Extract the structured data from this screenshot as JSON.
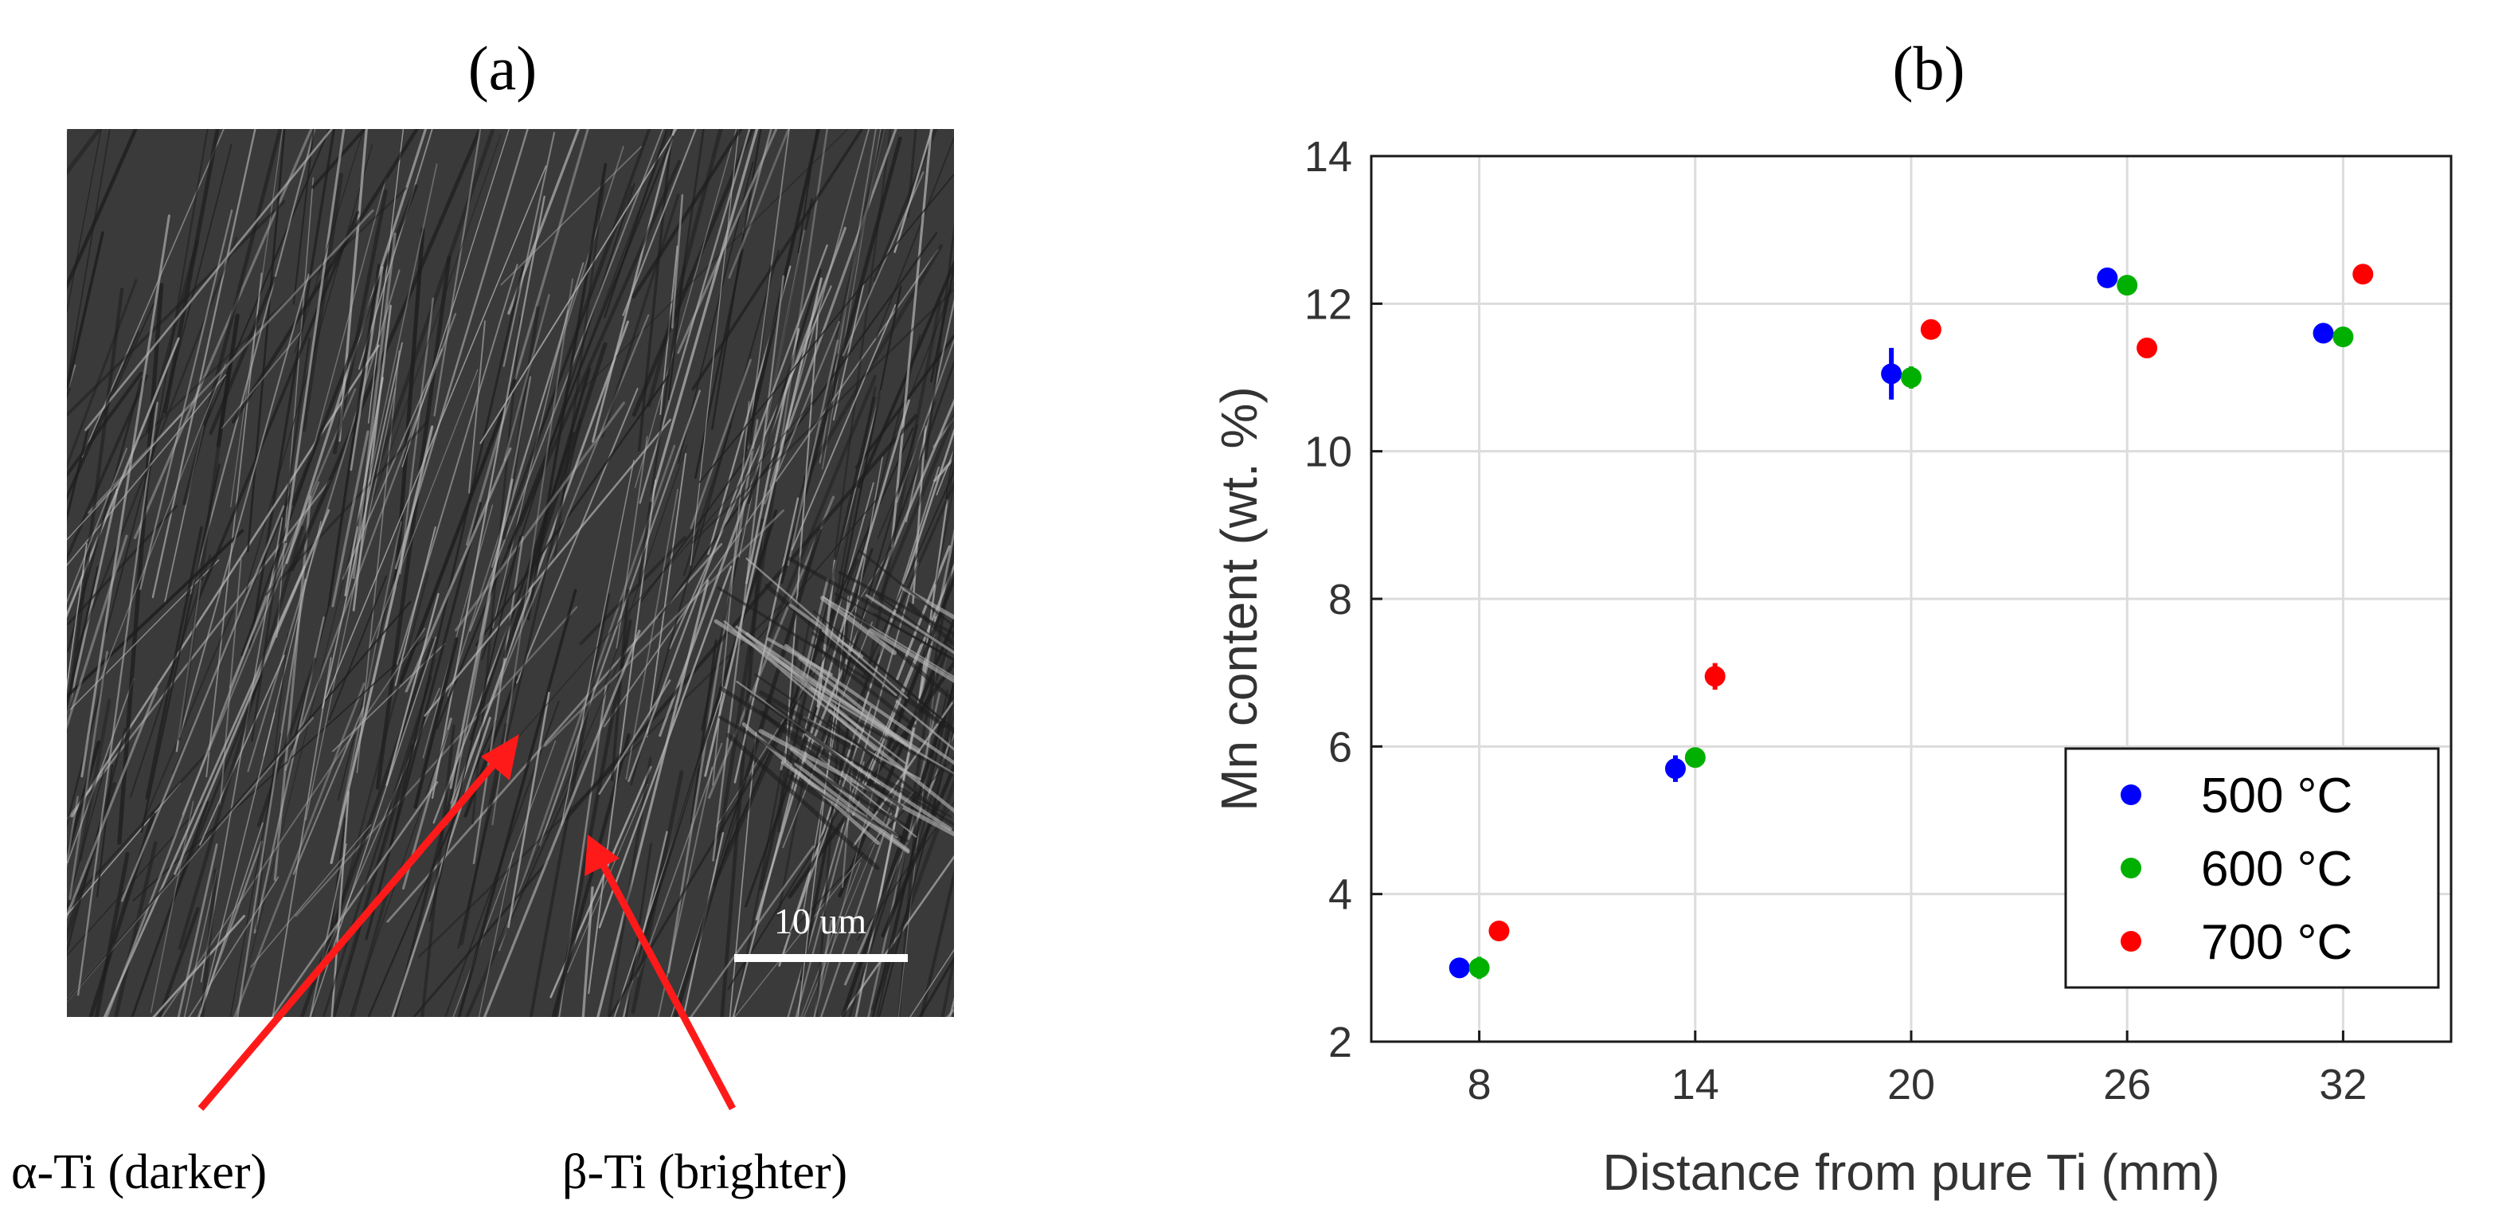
{
  "panel_a": {
    "label": "(a)",
    "scale_bar_label": "10 um",
    "annotations": [
      {
        "text": "α-Ti (darker)",
        "color": "#ff0000"
      },
      {
        "text": "β-Ti (brighter)",
        "color": "#ff0000"
      }
    ],
    "image_description_colors": {
      "background": "#3c3c3c",
      "lamella_light": "#b9b9b9",
      "lamella_dark": "#1e1e1e"
    }
  },
  "panel_b": {
    "label": "(b)"
  },
  "chart_data": {
    "type": "scatter",
    "title": "",
    "xlabel": "Distance from pure Ti (mm)",
    "ylabel": "Mn content (wt. %)",
    "categories": [
      "8",
      "14",
      "20",
      "26",
      "32"
    ],
    "x": [
      8,
      14,
      20,
      26,
      32
    ],
    "xlim": [
      5,
      35
    ],
    "ylim": [
      2,
      14
    ],
    "yticks": [
      "2",
      "4",
      "6",
      "8",
      "10",
      "12",
      "14"
    ],
    "grid": true,
    "legend_position": "bottom-right",
    "series": [
      {
        "name": "500 °C",
        "color": "#0000ff",
        "offset": -0.55,
        "values": [
          3.0,
          5.7,
          11.05,
          12.35,
          11.6
        ],
        "errors": [
          0.05,
          0.18,
          0.35,
          0.05,
          0.05
        ]
      },
      {
        "name": "600 °C",
        "color": "#00b000",
        "offset": 0.0,
        "values": [
          3.0,
          5.85,
          11.0,
          12.25,
          11.55
        ],
        "errors": [
          0.15,
          0.12,
          0.15,
          0.12,
          0.1
        ]
      },
      {
        "name": "700 °C",
        "color": "#ff0000",
        "offset": 0.55,
        "values": [
          3.5,
          6.95,
          11.65,
          11.4,
          12.4
        ],
        "errors": [
          0.05,
          0.18,
          0.08,
          0.05,
          0.08
        ]
      }
    ]
  }
}
